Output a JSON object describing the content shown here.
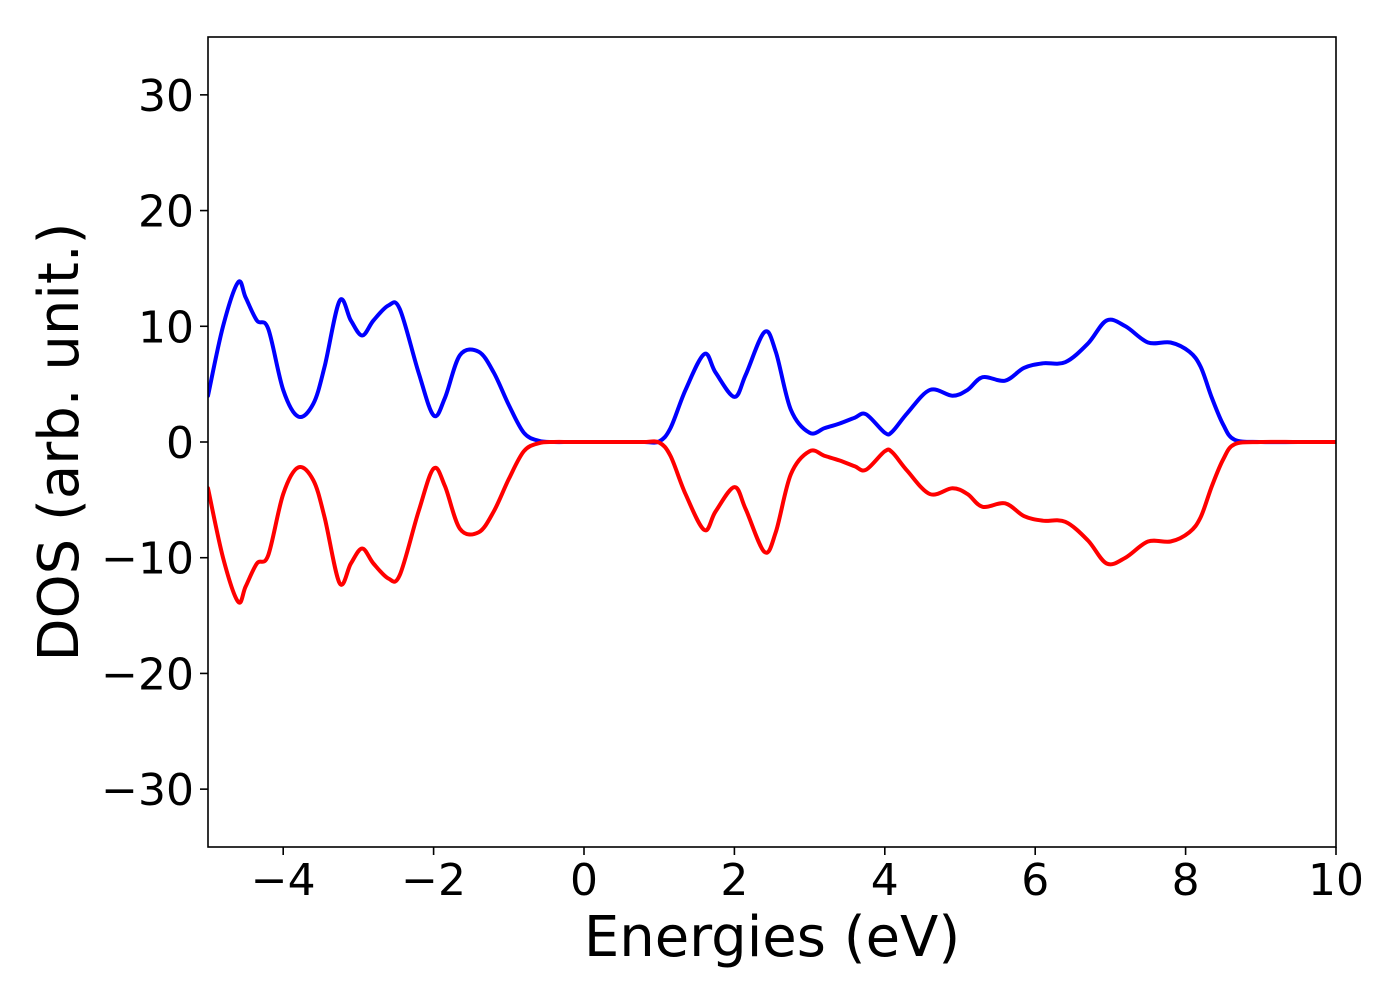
{
  "chart_data": {
    "type": "line",
    "title": "",
    "xlabel": "Energies (eV)",
    "ylabel": "DOS (arb. unit.)",
    "xlim": [
      -5,
      10
    ],
    "ylim": [
      -35,
      35
    ],
    "grid": false,
    "x_ticks": [
      -4,
      -2,
      0,
      2,
      4,
      6,
      8,
      10
    ],
    "x_tick_labels": [
      "−4",
      "−2",
      "0",
      "2",
      "4",
      "6",
      "8",
      "10"
    ],
    "y_ticks": [
      -30,
      -20,
      -10,
      0,
      10,
      20,
      30
    ],
    "y_tick_labels": [
      "−30",
      "−20",
      "−10",
      "0",
      "10",
      "20",
      "30"
    ],
    "x": [
      -5.0,
      -4.8,
      -4.6,
      -4.5,
      -4.35,
      -4.2,
      -4.0,
      -3.8,
      -3.6,
      -3.45,
      -3.25,
      -3.1,
      -2.95,
      -2.8,
      -2.6,
      -2.45,
      -2.2,
      -2.0,
      -1.85,
      -1.65,
      -1.4,
      -1.2,
      -1.0,
      -0.8,
      -0.6,
      -0.4,
      -0.2,
      0.0,
      0.2,
      0.4,
      0.6,
      0.8,
      1.0,
      1.15,
      1.35,
      1.6,
      1.75,
      2.0,
      2.15,
      2.4,
      2.55,
      2.75,
      3.0,
      3.2,
      3.4,
      3.6,
      3.75,
      4.0,
      4.1,
      4.3,
      4.6,
      4.9,
      5.1,
      5.3,
      5.6,
      5.85,
      6.1,
      6.4,
      6.7,
      6.95,
      7.2,
      7.5,
      7.8,
      8.05,
      8.2,
      8.35,
      8.5,
      8.65,
      9.0,
      9.5,
      10.0
    ],
    "series": [
      {
        "color": "#0000ff",
        "values": [
          4.0,
          10.0,
          13.8,
          12.5,
          10.5,
          9.8,
          4.5,
          2.2,
          3.3,
          6.5,
          12.2,
          10.5,
          9.2,
          10.5,
          11.8,
          11.5,
          6.0,
          2.3,
          3.8,
          7.5,
          7.8,
          6.0,
          3.2,
          0.8,
          0.1,
          0.0,
          0.0,
          0.0,
          0.0,
          0.0,
          0.0,
          0.0,
          0.05,
          1.2,
          4.5,
          7.6,
          6.0,
          3.9,
          5.8,
          9.5,
          7.8,
          2.8,
          0.8,
          1.2,
          1.6,
          2.1,
          2.4,
          0.8,
          0.9,
          2.5,
          4.5,
          4.0,
          4.5,
          5.6,
          5.3,
          6.4,
          6.8,
          6.9,
          8.5,
          10.5,
          10.0,
          8.6,
          8.6,
          7.8,
          6.5,
          3.8,
          1.5,
          0.2,
          0.0,
          0.0,
          0.0
        ]
      },
      {
        "color": "#ff0000",
        "values": [
          -4.0,
          -10.0,
          -13.8,
          -12.5,
          -10.5,
          -9.8,
          -4.5,
          -2.2,
          -3.3,
          -6.5,
          -12.2,
          -10.5,
          -9.2,
          -10.5,
          -11.8,
          -11.5,
          -6.0,
          -2.3,
          -3.8,
          -7.5,
          -7.8,
          -6.0,
          -3.2,
          -0.8,
          -0.1,
          0.0,
          0.0,
          0.0,
          0.0,
          0.0,
          0.0,
          0.0,
          -0.05,
          -1.2,
          -4.5,
          -7.6,
          -6.0,
          -3.9,
          -5.8,
          -9.5,
          -7.8,
          -2.8,
          -0.8,
          -1.2,
          -1.6,
          -2.1,
          -2.4,
          -0.8,
          -0.9,
          -2.5,
          -4.5,
          -4.0,
          -4.5,
          -5.6,
          -5.3,
          -6.4,
          -6.8,
          -6.9,
          -8.5,
          -10.5,
          -10.0,
          -8.6,
          -8.6,
          -7.8,
          -6.5,
          -3.8,
          -1.5,
          -0.2,
          0.0,
          0.0,
          0.0
        ]
      }
    ]
  }
}
